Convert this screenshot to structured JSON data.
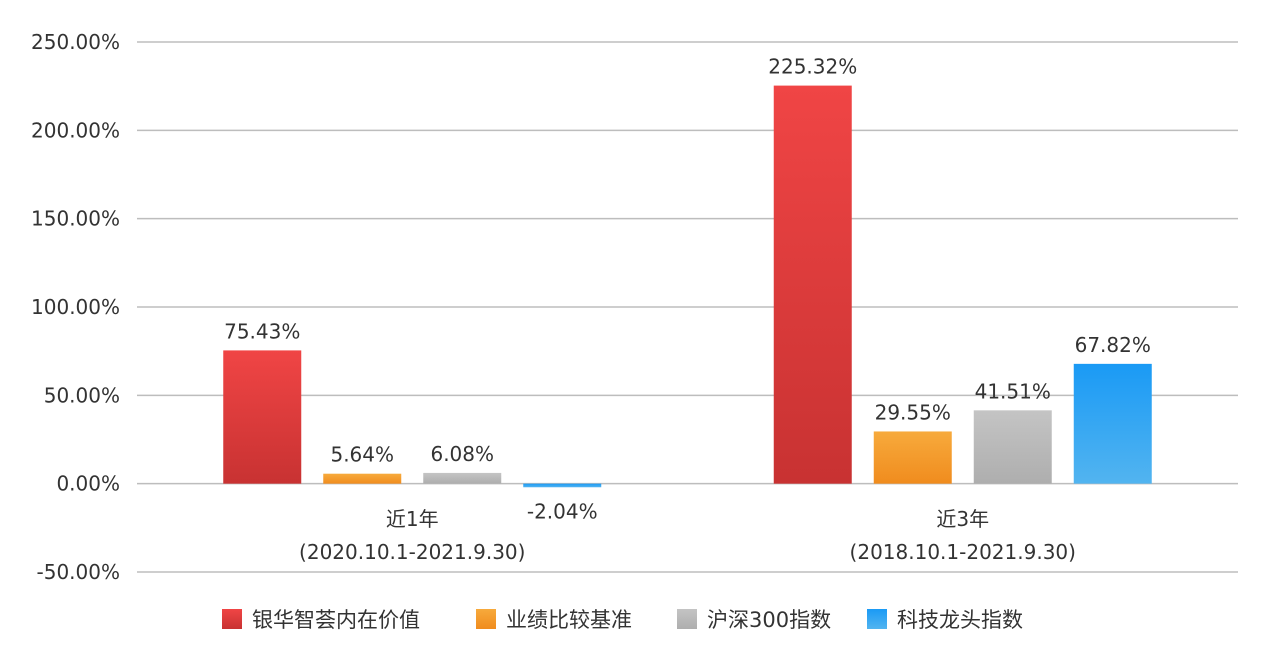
{
  "chart_data": {
    "type": "bar",
    "title": "",
    "xlabel": "",
    "ylabel": "",
    "ylim": [
      -50,
      250
    ],
    "yticks": [
      "250.00%",
      "200.00%",
      "150.00%",
      "100.00%",
      "50.00%",
      "0.00%",
      "-50.00%"
    ],
    "categories": [
      {
        "line1": "近1年",
        "line2": "(2020.10.1-2021.9.30)"
      },
      {
        "line1": "近3年",
        "line2": "(2018.10.1-2021.9.30)"
      }
    ],
    "series": [
      {
        "name": "银华智荟内在价值",
        "values": [
          75.43,
          225.32
        ],
        "labels": [
          "75.43%",
          "225.32%"
        ],
        "color_top": "#f04545",
        "color_bottom": "#c83232"
      },
      {
        "name": "业绩比较基准",
        "values": [
          5.64,
          29.55
        ],
        "labels": [
          "5.64%",
          "29.55%"
        ],
        "color_top": "#f7aa3c",
        "color_bottom": "#f08c1e"
      },
      {
        "name": "沪深300指数",
        "values": [
          6.08,
          41.51
        ],
        "labels": [
          "6.08%",
          "41.51%"
        ],
        "color_top": "#c4c4c4",
        "color_bottom": "#aeaeae"
      },
      {
        "name": "科技龙头指数",
        "values": [
          -2.04,
          67.82
        ],
        "labels": [
          "-2.04%",
          "67.82%"
        ],
        "color_top": "#1a9af5",
        "color_bottom": "#52b4f0"
      }
    ],
    "legend": "bottom",
    "grid": true
  }
}
